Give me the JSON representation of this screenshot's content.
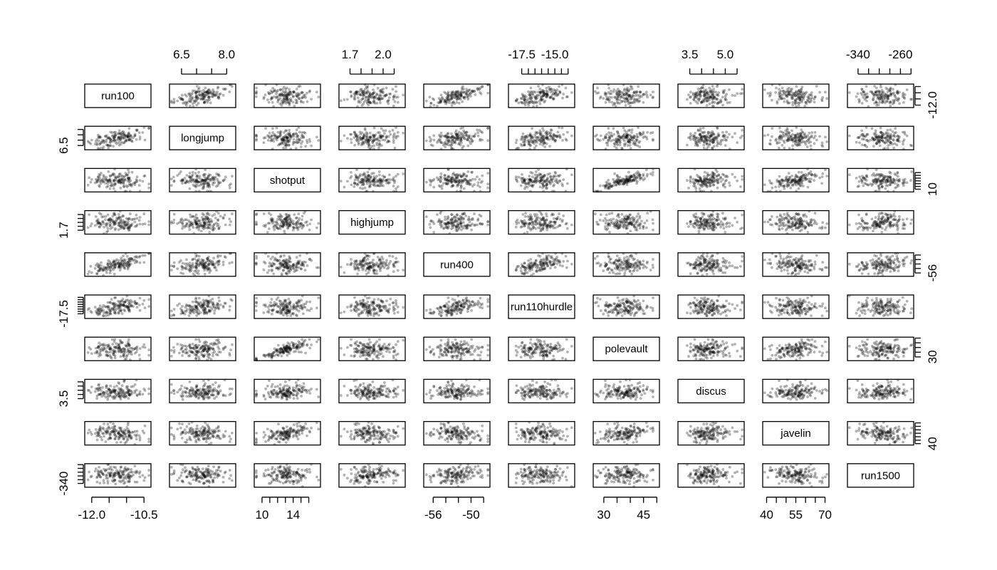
{
  "chart_data": {
    "type": "scatter",
    "kind": "scatterplot-matrix",
    "variables": [
      "run100",
      "longjump",
      "shotput",
      "highjump",
      "run400",
      "run110hurdle",
      "polevault",
      "discus",
      "javelin",
      "run1500"
    ],
    "n_points": 150,
    "point_color": "#000000",
    "point_alpha": 0.3,
    "panel_width_to_height": 3.1,
    "tick_labels": {
      "top": {
        "longjump": [
          "6.5",
          "8.0"
        ],
        "highjump": [
          "1.7",
          "2.0"
        ],
        "run110hurdle": [
          "-17.5",
          "-15.0"
        ],
        "discus": [
          "3.5",
          "5.0"
        ],
        "run1500": [
          "-340",
          "-260"
        ]
      },
      "bottom": {
        "run100": [
          "-12.0",
          "-10.5"
        ],
        "shotput": [
          "10",
          "14"
        ],
        "run400": [
          "-56",
          "-50"
        ],
        "polevault": [
          "30",
          "45"
        ],
        "javelin": [
          "40",
          "55",
          "70"
        ]
      },
      "left": {
        "longjump": [
          "6.5"
        ],
        "highjump": [
          "1.7"
        ],
        "run110hurdle": [
          "-17.5"
        ],
        "discus": [
          "3.5"
        ],
        "run1500": [
          "-340"
        ]
      },
      "right": {
        "run100": [
          "-12.0"
        ],
        "shotput": [
          "10"
        ],
        "run400": [
          "-56"
        ],
        "polevault": [
          "30"
        ],
        "javelin": [
          "40"
        ]
      }
    },
    "tick_label_values": {
      "run100": [
        -12.0,
        -10.5
      ],
      "longjump": [
        6.5,
        8.0
      ],
      "shotput": [
        10,
        14
      ],
      "highjump": [
        1.7,
        2.0
      ],
      "run400": [
        -56,
        -50
      ],
      "run110hurdle": [
        -17.5,
        -15.0
      ],
      "polevault": [
        30,
        45
      ],
      "discus": [
        3.5,
        5.0
      ],
      "javelin": [
        40,
        55,
        70
      ],
      "run1500": [
        -340,
        -260
      ]
    },
    "ranges": {
      "run100": [
        -12.2,
        -10.3
      ],
      "longjump": [
        6.1,
        8.3
      ],
      "shotput": [
        9.0,
        17.5
      ],
      "highjump": [
        1.6,
        2.2
      ],
      "run400": [
        -57.5,
        -47.0
      ],
      "run110hurdle": [
        -18.5,
        -13.5
      ],
      "polevault": [
        26,
        51
      ],
      "discus": [
        3.0,
        5.8
      ],
      "javelin": [
        38,
        72
      ],
      "run1500": [
        -360,
        -235
      ]
    },
    "ticks": {
      "run100": [
        -12.0,
        -11.5,
        -11.0,
        -10.5
      ],
      "longjump": [
        6.5,
        7.0,
        7.5,
        8.0
      ],
      "shotput": [
        10,
        11,
        12,
        13,
        14,
        15,
        16
      ],
      "highjump": [
        1.7,
        1.8,
        1.9,
        2.0,
        2.1
      ],
      "run400": [
        -56,
        -54,
        -52,
        -50,
        -48
      ],
      "run110hurdle": [
        -17.5,
        -17.0,
        -16.5,
        -16.0,
        -15.5,
        -15.0,
        -14.5,
        -14.0
      ],
      "polevault": [
        30,
        35,
        40,
        45,
        50
      ],
      "discus": [
        3.5,
        4.0,
        4.5,
        5.0,
        5.5
      ],
      "javelin": [
        40,
        45,
        50,
        55,
        60,
        65,
        70
      ],
      "run1500": [
        -340,
        -320,
        -300,
        -280,
        -260,
        -240
      ]
    },
    "correlations": [
      [
        "run100",
        "longjump",
        0.45
      ],
      [
        "run100",
        "run400",
        0.65
      ],
      [
        "run100",
        "run110hurdle",
        0.55
      ],
      [
        "longjump",
        "run400",
        0.3
      ],
      [
        "longjump",
        "run110hurdle",
        0.4
      ],
      [
        "longjump",
        "highjump",
        0.2
      ],
      [
        "longjump",
        "polevault",
        0.2
      ],
      [
        "shotput",
        "polevault",
        0.8
      ],
      [
        "shotput",
        "javelin",
        0.6
      ],
      [
        "shotput",
        "discus",
        0.3
      ],
      [
        "run400",
        "run110hurdle",
        0.55
      ],
      [
        "run400",
        "run1500",
        0.3
      ],
      [
        "polevault",
        "javelin",
        0.4
      ],
      [
        "polevault",
        "discus",
        0.2
      ],
      [
        "discus",
        "javelin",
        0.2
      ]
    ]
  }
}
